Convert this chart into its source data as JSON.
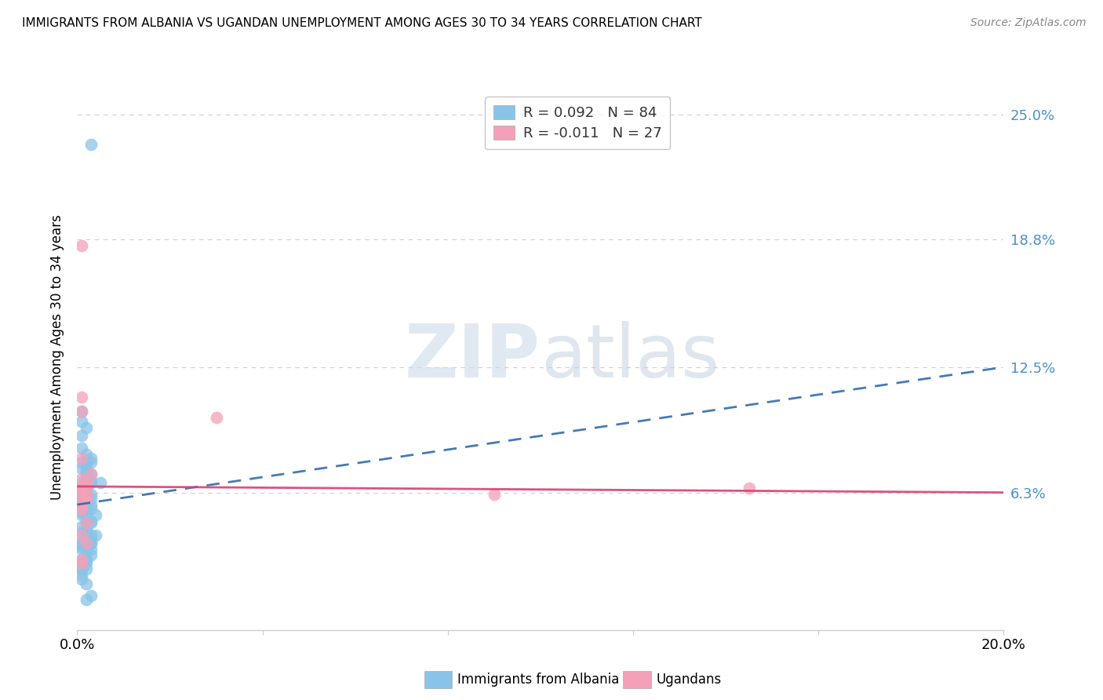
{
  "title": "IMMIGRANTS FROM ALBANIA VS UGANDAN UNEMPLOYMENT AMONG AGES 30 TO 34 YEARS CORRELATION CHART",
  "source": "Source: ZipAtlas.com",
  "ylabel": "Unemployment Among Ages 30 to 34 years",
  "xlim": [
    0.0,
    0.2
  ],
  "ylim": [
    -0.005,
    0.265
  ],
  "yticks_right": [
    0.0,
    0.063,
    0.125,
    0.188,
    0.25
  ],
  "ytick_right_labels": [
    "",
    "6.3%",
    "12.5%",
    "18.8%",
    "25.0%"
  ],
  "r_albania": 0.092,
  "n_albania": 84,
  "r_ugandan": -0.011,
  "n_ugandan": 27,
  "color_albania": "#89C4E8",
  "color_albania_line": "#2563A8",
  "color_ugandan": "#F4A0B8",
  "color_ugandan_line": "#D94070",
  "color_right_axis": "#4A90C8",
  "watermark_zip": "ZIP",
  "watermark_atlas": "atlas",
  "background": "#ffffff",
  "grid_color": "#cccccc",
  "albania_x": [
    0.003,
    0.001,
    0.001,
    0.001,
    0.001,
    0.001,
    0.002,
    0.001,
    0.001,
    0.002,
    0.002,
    0.001,
    0.002,
    0.003,
    0.002,
    0.001,
    0.001,
    0.002,
    0.001,
    0.002,
    0.003,
    0.002,
    0.002,
    0.001,
    0.002,
    0.003,
    0.002,
    0.001,
    0.001,
    0.002,
    0.003,
    0.002,
    0.002,
    0.001,
    0.001,
    0.003,
    0.002,
    0.001,
    0.002,
    0.003,
    0.002,
    0.001,
    0.002,
    0.003,
    0.002,
    0.001,
    0.002,
    0.003,
    0.002,
    0.003,
    0.002,
    0.001,
    0.002,
    0.001,
    0.003,
    0.002,
    0.001,
    0.002,
    0.001,
    0.003,
    0.002,
    0.003,
    0.002,
    0.001,
    0.003,
    0.002,
    0.001,
    0.002,
    0.003,
    0.002,
    0.002,
    0.001,
    0.002,
    0.001,
    0.003,
    0.002,
    0.005,
    0.003,
    0.004,
    0.003,
    0.002,
    0.004,
    0.002,
    0.003
  ],
  "albania_y": [
    0.235,
    0.078,
    0.103,
    0.098,
    0.091,
    0.085,
    0.095,
    0.075,
    0.068,
    0.082,
    0.074,
    0.065,
    0.072,
    0.078,
    0.071,
    0.062,
    0.059,
    0.068,
    0.063,
    0.077,
    0.08,
    0.072,
    0.065,
    0.058,
    0.073,
    0.069,
    0.063,
    0.055,
    0.062,
    0.078,
    0.068,
    0.058,
    0.065,
    0.052,
    0.046,
    0.072,
    0.06,
    0.053,
    0.067,
    0.06,
    0.052,
    0.043,
    0.055,
    0.049,
    0.042,
    0.038,
    0.048,
    0.055,
    0.042,
    0.062,
    0.049,
    0.035,
    0.055,
    0.03,
    0.057,
    0.044,
    0.036,
    0.043,
    0.025,
    0.038,
    0.028,
    0.048,
    0.035,
    0.02,
    0.042,
    0.03,
    0.025,
    0.038,
    0.032,
    0.025,
    0.045,
    0.038,
    0.03,
    0.022,
    0.035,
    0.01,
    0.068,
    0.04,
    0.052,
    0.038,
    0.03,
    0.042,
    0.018,
    0.012
  ],
  "ugandan_x": [
    0.001,
    0.001,
    0.001,
    0.001,
    0.001,
    0.002,
    0.001,
    0.001,
    0.001,
    0.002,
    0.001,
    0.002,
    0.001,
    0.003,
    0.002,
    0.001,
    0.001,
    0.002,
    0.001,
    0.002,
    0.001,
    0.002,
    0.001,
    0.03,
    0.001,
    0.09,
    0.145
  ],
  "ugandan_y": [
    0.185,
    0.103,
    0.08,
    0.11,
    0.065,
    0.068,
    0.07,
    0.063,
    0.06,
    0.065,
    0.058,
    0.068,
    0.055,
    0.072,
    0.062,
    0.065,
    0.058,
    0.06,
    0.055,
    0.048,
    0.042,
    0.038,
    0.028,
    0.1,
    0.03,
    0.062,
    0.065
  ],
  "trend_albania_x0": 0.0,
  "trend_albania_y0": 0.057,
  "trend_albania_x1": 0.2,
  "trend_albania_y1": 0.125,
  "trend_ugandan_x0": 0.0,
  "trend_ugandan_y0": 0.066,
  "trend_ugandan_x1": 0.2,
  "trend_ugandan_y1": 0.063
}
